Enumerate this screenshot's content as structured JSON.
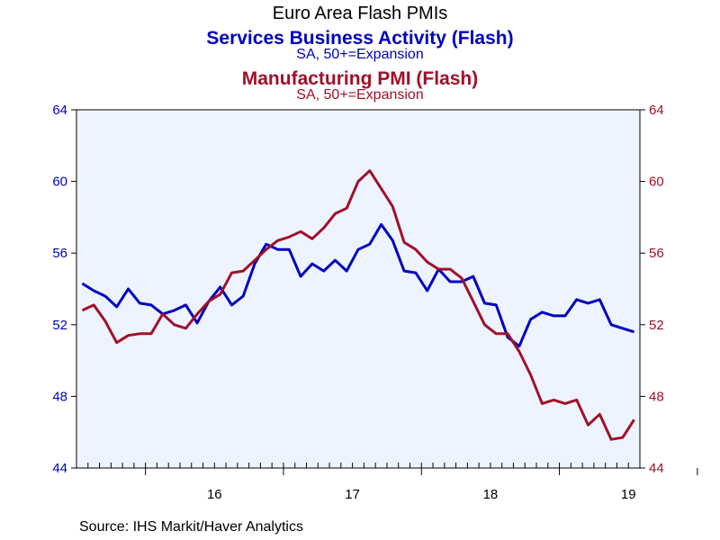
{
  "colors": {
    "services": "#0000c0",
    "manufacturing": "#a0102a",
    "plot_background": "#eef4ff",
    "axis": "#000000"
  },
  "chart_data": {
    "type": "line",
    "title": "Euro Area Flash PMIs",
    "source": "Source:  IHS Markit/Haver Analytics",
    "ylim": [
      44,
      64
    ],
    "y_ticks": [
      "44",
      "48",
      "52",
      "56",
      "60",
      "64"
    ],
    "x_tick_labels": [
      "16",
      "17",
      "18",
      "19"
    ],
    "x_start": "2015-07",
    "x_end": "2019-09",
    "series": [
      {
        "name": "Services Business Activity (Flash)",
        "subtitle": "SA, 50+=Expansion",
        "axis": "left",
        "values": [
          54.3,
          53.9,
          53.6,
          53.0,
          54.0,
          53.2,
          53.1,
          52.6,
          52.8,
          53.1,
          52.1,
          53.3,
          54.1,
          53.1,
          53.6,
          55.4,
          56.5,
          56.2,
          56.2,
          54.7,
          55.4,
          55.0,
          55.6,
          55.0,
          56.2,
          56.5,
          57.6,
          56.7,
          55.0,
          54.9,
          53.9,
          55.1,
          54.4,
          54.4,
          54.7,
          53.2,
          53.1,
          51.3,
          50.8,
          52.3,
          52.7,
          52.5,
          52.5,
          53.4,
          53.2,
          53.4,
          52.0,
          51.8,
          51.6
        ]
      },
      {
        "name": "Manufacturing PMI (Flash)",
        "subtitle": "SA, 50+=Expansion",
        "axis": "right",
        "values": [
          52.8,
          53.1,
          52.2,
          51.0,
          51.4,
          51.5,
          51.5,
          52.6,
          52.0,
          51.8,
          52.6,
          53.3,
          53.7,
          54.9,
          55.0,
          55.6,
          56.2,
          56.7,
          56.9,
          57.2,
          56.8,
          57.4,
          58.2,
          58.5,
          60.0,
          60.6,
          59.6,
          58.6,
          56.6,
          56.2,
          55.5,
          55.1,
          55.1,
          54.6,
          53.3,
          52.0,
          51.5,
          51.5,
          50.5,
          49.2,
          47.6,
          47.8,
          47.6,
          47.8,
          46.4,
          47.0,
          45.6,
          45.7,
          46.7
        ]
      }
    ]
  }
}
